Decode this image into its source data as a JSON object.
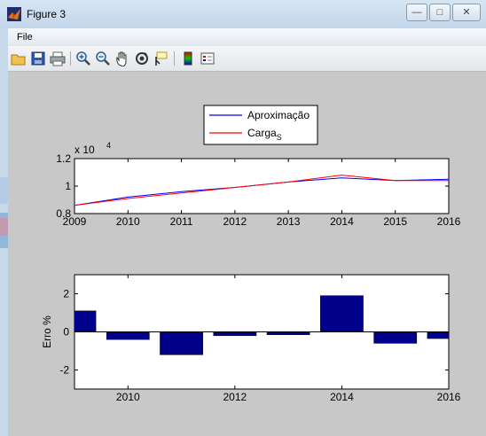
{
  "window": {
    "title": "Figure 3",
    "controls": {
      "minimize": "—",
      "maximize": "□",
      "close": "✕"
    }
  },
  "menu": {
    "file": "File"
  },
  "toolbar": {
    "icons": [
      "open-icon",
      "save-icon",
      "print-icon",
      "zoom-in-icon",
      "zoom-out-icon",
      "pan-icon",
      "rotate-3d-icon",
      "data-cursor-icon",
      "colorbar-icon",
      "legend-icon"
    ]
  },
  "legend": {
    "entries": [
      "Aproximação",
      "Carga",
      "S"
    ]
  },
  "colors": {
    "approx": "#0000ff",
    "carga": "#ff0000",
    "bars": "#00008b",
    "plot_bg": "#ffffff",
    "figure_bg": "#c8c8c8"
  },
  "chart_data": [
    {
      "type": "line",
      "x": [
        2009,
        2010,
        2011,
        2012,
        2013,
        2014,
        2015,
        2016
      ],
      "series": [
        {
          "name": "Aproximação",
          "values": [
            0.86,
            0.92,
            0.96,
            0.99,
            1.03,
            1.06,
            1.04,
            1.05
          ]
        },
        {
          "name": "CargaS",
          "values": [
            0.86,
            0.91,
            0.95,
            0.99,
            1.03,
            1.08,
            1.04,
            1.04
          ]
        }
      ],
      "xlim": [
        2009,
        2016
      ],
      "ylim": [
        0.8,
        1.2
      ],
      "xticks": [
        "2009",
        "2010",
        "2011",
        "2012",
        "2013",
        "2014",
        "2015",
        "2016"
      ],
      "yticks": [
        "0.8",
        "1",
        "1.2"
      ],
      "yexponent": "x 10",
      "yexponent_power": "4"
    },
    {
      "type": "bar",
      "categories": [
        2009,
        2010,
        2011,
        2012,
        2013,
        2014,
        2015,
        2016
      ],
      "values": [
        1.1,
        -0.4,
        -1.2,
        -0.2,
        -0.15,
        1.9,
        -0.6,
        -0.35
      ],
      "xlim": [
        2009,
        2016
      ],
      "ylim": [
        -3,
        3
      ],
      "xticks": [
        "2010",
        "2012",
        "2014",
        "2016"
      ],
      "yticks": [
        "-2",
        "0",
        "2"
      ],
      "ylabel": "Erro %"
    }
  ]
}
